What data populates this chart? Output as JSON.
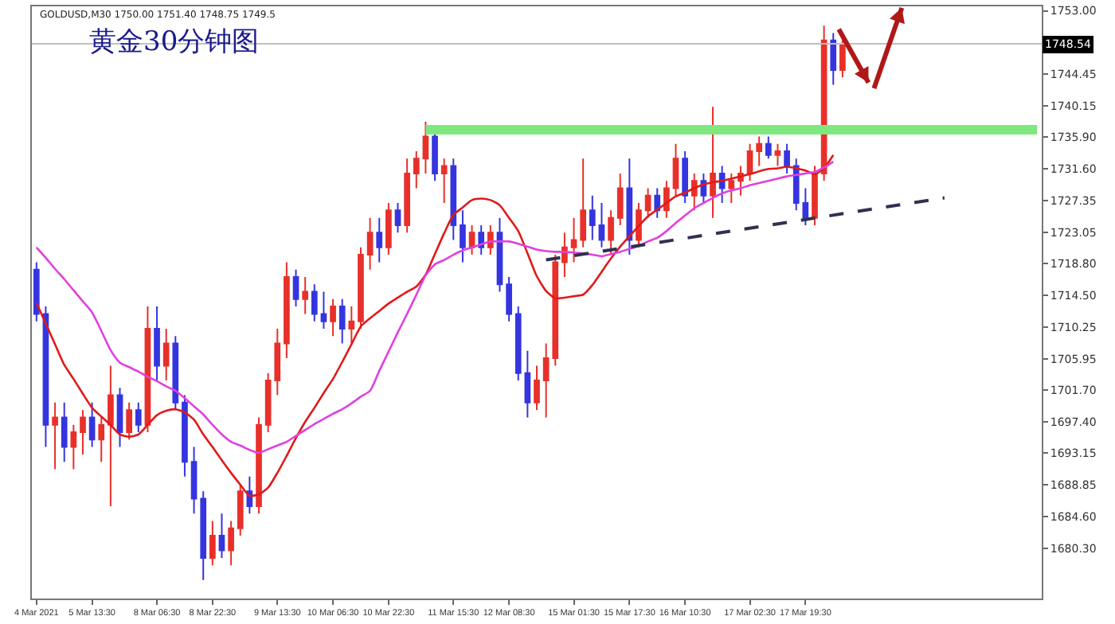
{
  "chart_data": {
    "type": "candlestick",
    "title": "黄金30分钟图",
    "annotations": [
      "GOLDUSD,M30 1750.00 1751.40 1748.75 1749.5"
    ],
    "categories": [
      "4 Mar 2021",
      null,
      null,
      null,
      null,
      null,
      "5 Mar 13:30",
      null,
      null,
      null,
      null,
      null,
      null,
      "8 Mar 06:30",
      null,
      null,
      null,
      null,
      null,
      "8 Mar 22:30",
      null,
      null,
      null,
      null,
      null,
      null,
      "9 Mar 13:30",
      null,
      null,
      null,
      null,
      null,
      "10 Mar 06:30",
      null,
      null,
      null,
      null,
      null,
      "10 Mar 22:30",
      null,
      null,
      null,
      null,
      null,
      null,
      "11 Mar 15:30",
      null,
      null,
      null,
      null,
      null,
      "12 Mar 08:30",
      null,
      null,
      null,
      null,
      null,
      null,
      "15 Mar 01:30",
      null,
      null,
      null,
      null,
      null,
      "15 Mar 17:30",
      null,
      null,
      null,
      null,
      null,
      "16 Mar 10:30",
      null,
      null,
      null,
      null,
      null,
      null,
      "17 Mar 02:30",
      null,
      null,
      null,
      null,
      null,
      "17 Mar 19:30",
      null,
      null,
      null,
      null,
      null,
      null,
      null,
      null,
      null,
      null,
      null,
      null,
      null,
      null,
      null,
      null,
      null,
      null,
      null,
      null,
      null,
      null,
      null,
      null,
      null
    ],
    "ohlc": [
      [
        1718,
        1719,
        1711,
        1712
      ],
      [
        1712,
        1713,
        1694,
        1697
      ],
      [
        1697,
        1700,
        1691,
        1698
      ],
      [
        1698,
        1700,
        1692,
        1694
      ],
      [
        1694,
        1697,
        1691,
        1696
      ],
      [
        1696,
        1699,
        1693,
        1698
      ],
      [
        1698,
        1700,
        1694,
        1695
      ],
      [
        1695,
        1698,
        1692,
        1697
      ],
      [
        1697,
        1705,
        1686,
        1701
      ],
      [
        1701,
        1702,
        1694,
        1696
      ],
      [
        1696,
        1700,
        1695,
        1699
      ],
      [
        1699,
        1700,
        1696,
        1697
      ],
      [
        1697,
        1713,
        1696,
        1710
      ],
      [
        1710,
        1713,
        1703,
        1705
      ],
      [
        1705,
        1710,
        1703,
        1708
      ],
      [
        1708,
        1709,
        1699,
        1700
      ],
      [
        1700,
        1701,
        1690,
        1692
      ],
      [
        1692,
        1694,
        1685,
        1687
      ],
      [
        1687,
        1688,
        1676,
        1679
      ],
      [
        1679,
        1684,
        1678,
        1682
      ],
      [
        1682,
        1685,
        1679,
        1680
      ],
      [
        1680,
        1684,
        1678,
        1683
      ],
      [
        1683,
        1689,
        1682,
        1688
      ],
      [
        1688,
        1690,
        1685,
        1686
      ],
      [
        1686,
        1698,
        1685,
        1697
      ],
      [
        1697,
        1704,
        1696,
        1703
      ],
      [
        1703,
        1710,
        1701,
        1708
      ],
      [
        1708,
        1719,
        1706,
        1717
      ],
      [
        1717,
        1718,
        1713,
        1714
      ],
      [
        1714,
        1717,
        1712,
        1715
      ],
      [
        1715,
        1716,
        1711,
        1712
      ],
      [
        1712,
        1715,
        1710,
        1711
      ],
      [
        1711,
        1714,
        1709,
        1713
      ],
      [
        1713,
        1714,
        1708,
        1710
      ],
      [
        1710,
        1713,
        1708,
        1711
      ],
      [
        1711,
        1721,
        1710,
        1720
      ],
      [
        1720,
        1725,
        1718,
        1723
      ],
      [
        1723,
        1725,
        1719,
        1721
      ],
      [
        1721,
        1727,
        1720,
        1726
      ],
      [
        1726,
        1727,
        1723,
        1724
      ],
      [
        1724,
        1733,
        1723,
        1731
      ],
      [
        1731,
        1734,
        1729,
        1733
      ],
      [
        1733,
        1738,
        1731,
        1736
      ],
      [
        1736,
        1737,
        1730,
        1731
      ],
      [
        1731,
        1733,
        1727,
        1732
      ],
      [
        1732,
        1733,
        1722,
        1724
      ],
      [
        1724,
        1726,
        1719,
        1721
      ],
      [
        1721,
        1724,
        1720,
        1723
      ],
      [
        1723,
        1724,
        1720,
        1721
      ],
      [
        1721,
        1724,
        1720,
        1723
      ],
      [
        1723,
        1725,
        1715,
        1716
      ],
      [
        1716,
        1717,
        1711,
        1712
      ],
      [
        1712,
        1713,
        1703,
        1704
      ],
      [
        1704,
        1707,
        1698,
        1700
      ],
      [
        1700,
        1705,
        1699,
        1703
      ],
      [
        1703,
        1708,
        1698,
        1706
      ],
      [
        1706,
        1720,
        1705,
        1719
      ],
      [
        1719,
        1723,
        1717,
        1721
      ],
      [
        1721,
        1725,
        1719,
        1722
      ],
      [
        1722,
        1733,
        1721,
        1726
      ],
      [
        1726,
        1728,
        1722,
        1724
      ],
      [
        1724,
        1727,
        1721,
        1722
      ],
      [
        1722,
        1726,
        1720,
        1725
      ],
      [
        1725,
        1731,
        1724,
        1729
      ],
      [
        1729,
        1733,
        1720,
        1722
      ],
      [
        1722,
        1727,
        1721,
        1726
      ],
      [
        1726,
        1729,
        1725,
        1728
      ],
      [
        1728,
        1729,
        1725,
        1726
      ],
      [
        1726,
        1730,
        1725,
        1729
      ],
      [
        1729,
        1735,
        1728,
        1733
      ],
      [
        1733,
        1734,
        1727,
        1728
      ],
      [
        1728,
        1731,
        1726,
        1730
      ],
      [
        1730,
        1731,
        1727,
        1728
      ],
      [
        1728,
        1740,
        1725,
        1731
      ],
      [
        1731,
        1732,
        1727,
        1729
      ],
      [
        1729,
        1731,
        1727,
        1730
      ],
      [
        1730,
        1732,
        1728,
        1731
      ],
      [
        1731,
        1735,
        1730,
        1734
      ],
      [
        1734,
        1736,
        1732,
        1735
      ],
      [
        1735,
        1736,
        1733,
        1733.5
      ],
      [
        1733.5,
        1735,
        1732,
        1734
      ],
      [
        1734,
        1735,
        1731,
        1732
      ],
      [
        1732,
        1733,
        1726,
        1727
      ],
      [
        1727,
        1729,
        1724,
        1725
      ],
      [
        1725,
        1732,
        1724,
        1731
      ],
      [
        1731,
        1751,
        1730,
        1749
      ],
      [
        1749,
        1750,
        1743,
        1745
      ],
      [
        1745,
        1749,
        1744,
        1748.5
      ],
      null,
      null,
      null,
      null,
      null,
      null,
      null,
      null,
      null,
      null,
      null,
      null,
      null,
      null,
      null,
      null,
      null,
      null,
      null,
      null,
      null
    ],
    "colors": [
      "#3535e0",
      "#3535e0",
      "#e8302a",
      "#3535e0",
      "#e8302a",
      "#e8302a",
      "#3535e0",
      "#e8302a",
      "#e8302a",
      "#3535e0",
      "#e8302a",
      "#3535e0",
      "#e8302a",
      "#3535e0",
      "#e8302a",
      "#3535e0",
      "#3535e0",
      "#3535e0",
      "#3535e0",
      "#e8302a",
      "#3535e0",
      "#e8302a",
      "#e8302a",
      "#3535e0",
      "#e8302a",
      "#e8302a",
      "#e8302a",
      "#e8302a",
      "#3535e0",
      "#e8302a",
      "#3535e0",
      "#3535e0",
      "#e8302a",
      "#3535e0",
      "#e8302a",
      "#e8302a",
      "#e8302a",
      "#3535e0",
      "#e8302a",
      "#3535e0",
      "#e8302a",
      "#e8302a",
      "#e8302a",
      "#3535e0",
      "#e8302a",
      "#3535e0",
      "#3535e0",
      "#e8302a",
      "#3535e0",
      "#e8302a",
      "#3535e0",
      "#3535e0",
      "#3535e0",
      "#3535e0",
      "#e8302a",
      "#e8302a",
      "#e8302a",
      "#e8302a",
      "#e8302a",
      "#e8302a",
      "#3535e0",
      "#3535e0",
      "#e8302a",
      "#e8302a",
      "#3535e0",
      "#e8302a",
      "#e8302a",
      "#3535e0",
      "#e8302a",
      "#e8302a",
      "#3535e0",
      "#e8302a",
      "#3535e0",
      "#e8302a",
      "#3535e0",
      "#e8302a",
      "#e8302a",
      "#e8302a",
      "#e8302a",
      "#3535e0",
      "#e8302a",
      "#3535e0",
      "#3535e0",
      "#3535e0",
      "#e8302a",
      "#e8302a",
      "#3535e0",
      "#e8302a",
      null,
      null,
      null,
      null,
      null,
      null,
      null,
      null,
      null,
      null,
      null,
      null,
      null,
      null,
      null,
      null,
      null,
      null,
      null,
      null,
      null
    ],
    "ylim": [
      1673.5,
      1753.6
    ],
    "yticks": [
      {
        "value": 1753,
        "label": "1753.00"
      },
      {
        "value": 1744.45,
        "label": "1744.45"
      },
      {
        "value": 1740.15,
        "label": "1740.15"
      },
      {
        "value": 1735.9,
        "label": "1735.90"
      },
      {
        "value": 1731.6,
        "label": "1731.60"
      },
      {
        "value": 1727.35,
        "label": "1727.35"
      },
      {
        "value": 1723.05,
        "label": "1723.05"
      },
      {
        "value": 1718.8,
        "label": "1718.80"
      },
      {
        "value": 1714.5,
        "label": "1714.50"
      },
      {
        "value": 1710.25,
        "label": "1710.25"
      },
      {
        "value": 1705.95,
        "label": "1705.95"
      },
      {
        "value": 1701.7,
        "label": "1701.70"
      },
      {
        "value": 1697.4,
        "label": "1697.40"
      },
      {
        "value": 1693.15,
        "label": "1693.15"
      },
      {
        "value": 1688.85,
        "label": "1688.85"
      },
      {
        "value": 1684.6,
        "label": "1684.60"
      },
      {
        "value": 1680.3,
        "label": "1680.30"
      }
    ],
    "grid": false,
    "ref_lines": [
      {
        "axis": "y",
        "value": 1748.54,
        "label": "1748.54",
        "color": "#c0c0c0"
      }
    ],
    "series": [
      {
        "type": "line",
        "color": "#e01a1a",
        "values": [
          1713.5,
          1710.7,
          1707.9,
          1705.1,
          1703.2,
          1701.2,
          1699.3,
          1698.1,
          1697.0,
          1695.7,
          1695.4,
          1695.7,
          1697.0,
          1698.3,
          1698.9,
          1699.1,
          1698.7,
          1697.7,
          1695.7,
          1694.0,
          1692.2,
          1690.5,
          1688.9,
          1687.4,
          1687.6,
          1688.5,
          1690.5,
          1692.8,
          1695.2,
          1697.4,
          1699.3,
          1701.3,
          1703.2,
          1705.5,
          1707.9,
          1710.3,
          1711.4,
          1712.4,
          1713.4,
          1714.2,
          1715.0,
          1715.7,
          1717.3,
          1720.1,
          1722.9,
          1725.4,
          1726.4,
          1727.4,
          1727.6,
          1727.4,
          1726.7,
          1725.0,
          1723.2,
          1720.2,
          1717.1,
          1715.1,
          1714.1,
          1714.2,
          1714.4,
          1714.6,
          1715.9,
          1717.7,
          1719.5,
          1721.1,
          1722.5,
          1723.9,
          1725.2,
          1726.1,
          1727.0,
          1727.9,
          1728.4,
          1729.0,
          1729.5,
          1729.8,
          1730.0,
          1730.3,
          1730.6,
          1730.9,
          1731.3,
          1731.6,
          1731.7,
          1731.9,
          1731.7,
          1731.4,
          1730.9,
          1731.7,
          1733.5,
          null,
          null,
          null,
          null,
          null,
          null,
          null,
          null,
          null,
          null,
          null,
          null,
          null,
          null,
          null,
          null,
          null,
          null,
          null,
          null,
          null,
          null
        ]
      },
      {
        "type": "line",
        "color": "#e040e0",
        "values": [
          1721.0,
          1719.6,
          1718.1,
          1716.7,
          1715.2,
          1713.7,
          1712.2,
          1709.7,
          1707.1,
          1705.4,
          1704.8,
          1704.2,
          1703.5,
          1702.9,
          1702.2,
          1701.6,
          1700.6,
          1699.5,
          1698.4,
          1697.0,
          1695.7,
          1694.7,
          1694.2,
          1693.6,
          1693.2,
          1693.7,
          1694.2,
          1694.7,
          1695.5,
          1696.3,
          1697.1,
          1697.8,
          1698.5,
          1699.1,
          1699.9,
          1700.8,
          1701.6,
          1704.3,
          1706.9,
          1709.5,
          1712.0,
          1714.6,
          1717.2,
          1718.7,
          1719.3,
          1720.0,
          1720.6,
          1721.0,
          1721.4,
          1721.8,
          1721.8,
          1721.8,
          1721.5,
          1721.1,
          1720.7,
          1720.5,
          1720.4,
          1720.4,
          1720.3,
          1720.2,
          1720.0,
          1719.8,
          1720.1,
          1720.4,
          1720.8,
          1721.2,
          1721.8,
          1722.3,
          1723.2,
          1724.3,
          1725.3,
          1726.3,
          1727.0,
          1727.7,
          1728.3,
          1728.7,
          1729.0,
          1729.4,
          1729.7,
          1730.0,
          1730.3,
          1730.6,
          1730.8,
          1731.0,
          1731.2,
          1731.8,
          1732.6,
          null,
          null,
          null,
          null,
          null,
          null,
          null,
          null,
          null,
          null,
          null,
          null,
          null,
          null,
          null,
          null,
          null,
          null,
          null,
          null,
          null,
          null
        ]
      },
      {
        "type": "line",
        "color": "#7ee87e",
        "values": [
          null,
          null,
          null,
          null,
          null,
          null,
          null,
          null,
          null,
          null,
          null,
          null,
          null,
          null,
          null,
          null,
          null,
          null,
          null,
          null,
          null,
          null,
          null,
          null,
          null,
          null,
          null,
          null,
          null,
          null,
          null,
          null,
          null,
          null,
          null,
          null,
          null,
          null,
          null,
          null,
          null,
          null,
          1736.9,
          null,
          null,
          null,
          null,
          null,
          null,
          null,
          null,
          null,
          null,
          null,
          null,
          null,
          null,
          null,
          null,
          null,
          null,
          null,
          null,
          null,
          null,
          null,
          null,
          null,
          null,
          null,
          null,
          null,
          null,
          null,
          null,
          null,
          null,
          null,
          null,
          null,
          null,
          null,
          null,
          null,
          null,
          null,
          null,
          null,
          null,
          null,
          null,
          null,
          null,
          null,
          null,
          null,
          null,
          null,
          null,
          null,
          null,
          null,
          null,
          null,
          null,
          null,
          null,
          null,
          1736.9
        ]
      },
      {
        "type": "line",
        "color": "#303050",
        "line_style": "dashed",
        "values": [
          null,
          null,
          null,
          null,
          null,
          null,
          null,
          null,
          null,
          null,
          null,
          null,
          null,
          null,
          null,
          null,
          null,
          null,
          null,
          null,
          null,
          null,
          null,
          null,
          null,
          null,
          null,
          null,
          null,
          null,
          null,
          null,
          null,
          null,
          null,
          null,
          null,
          null,
          null,
          null,
          null,
          null,
          null,
          null,
          null,
          null,
          null,
          null,
          null,
          null,
          null,
          null,
          null,
          null,
          null,
          1719.3,
          null,
          null,
          null,
          null,
          null,
          null,
          null,
          null,
          null,
          null,
          null,
          null,
          null,
          null,
          null,
          null,
          null,
          null,
          null,
          null,
          null,
          null,
          null,
          null,
          null,
          null,
          null,
          null,
          null,
          null,
          null,
          null,
          null,
          null,
          null,
          null,
          null,
          null,
          null,
          null,
          null,
          null,
          1727.7,
          null,
          null,
          null,
          null,
          null,
          null,
          null,
          null,
          null,
          null
        ]
      }
    ]
  }
}
